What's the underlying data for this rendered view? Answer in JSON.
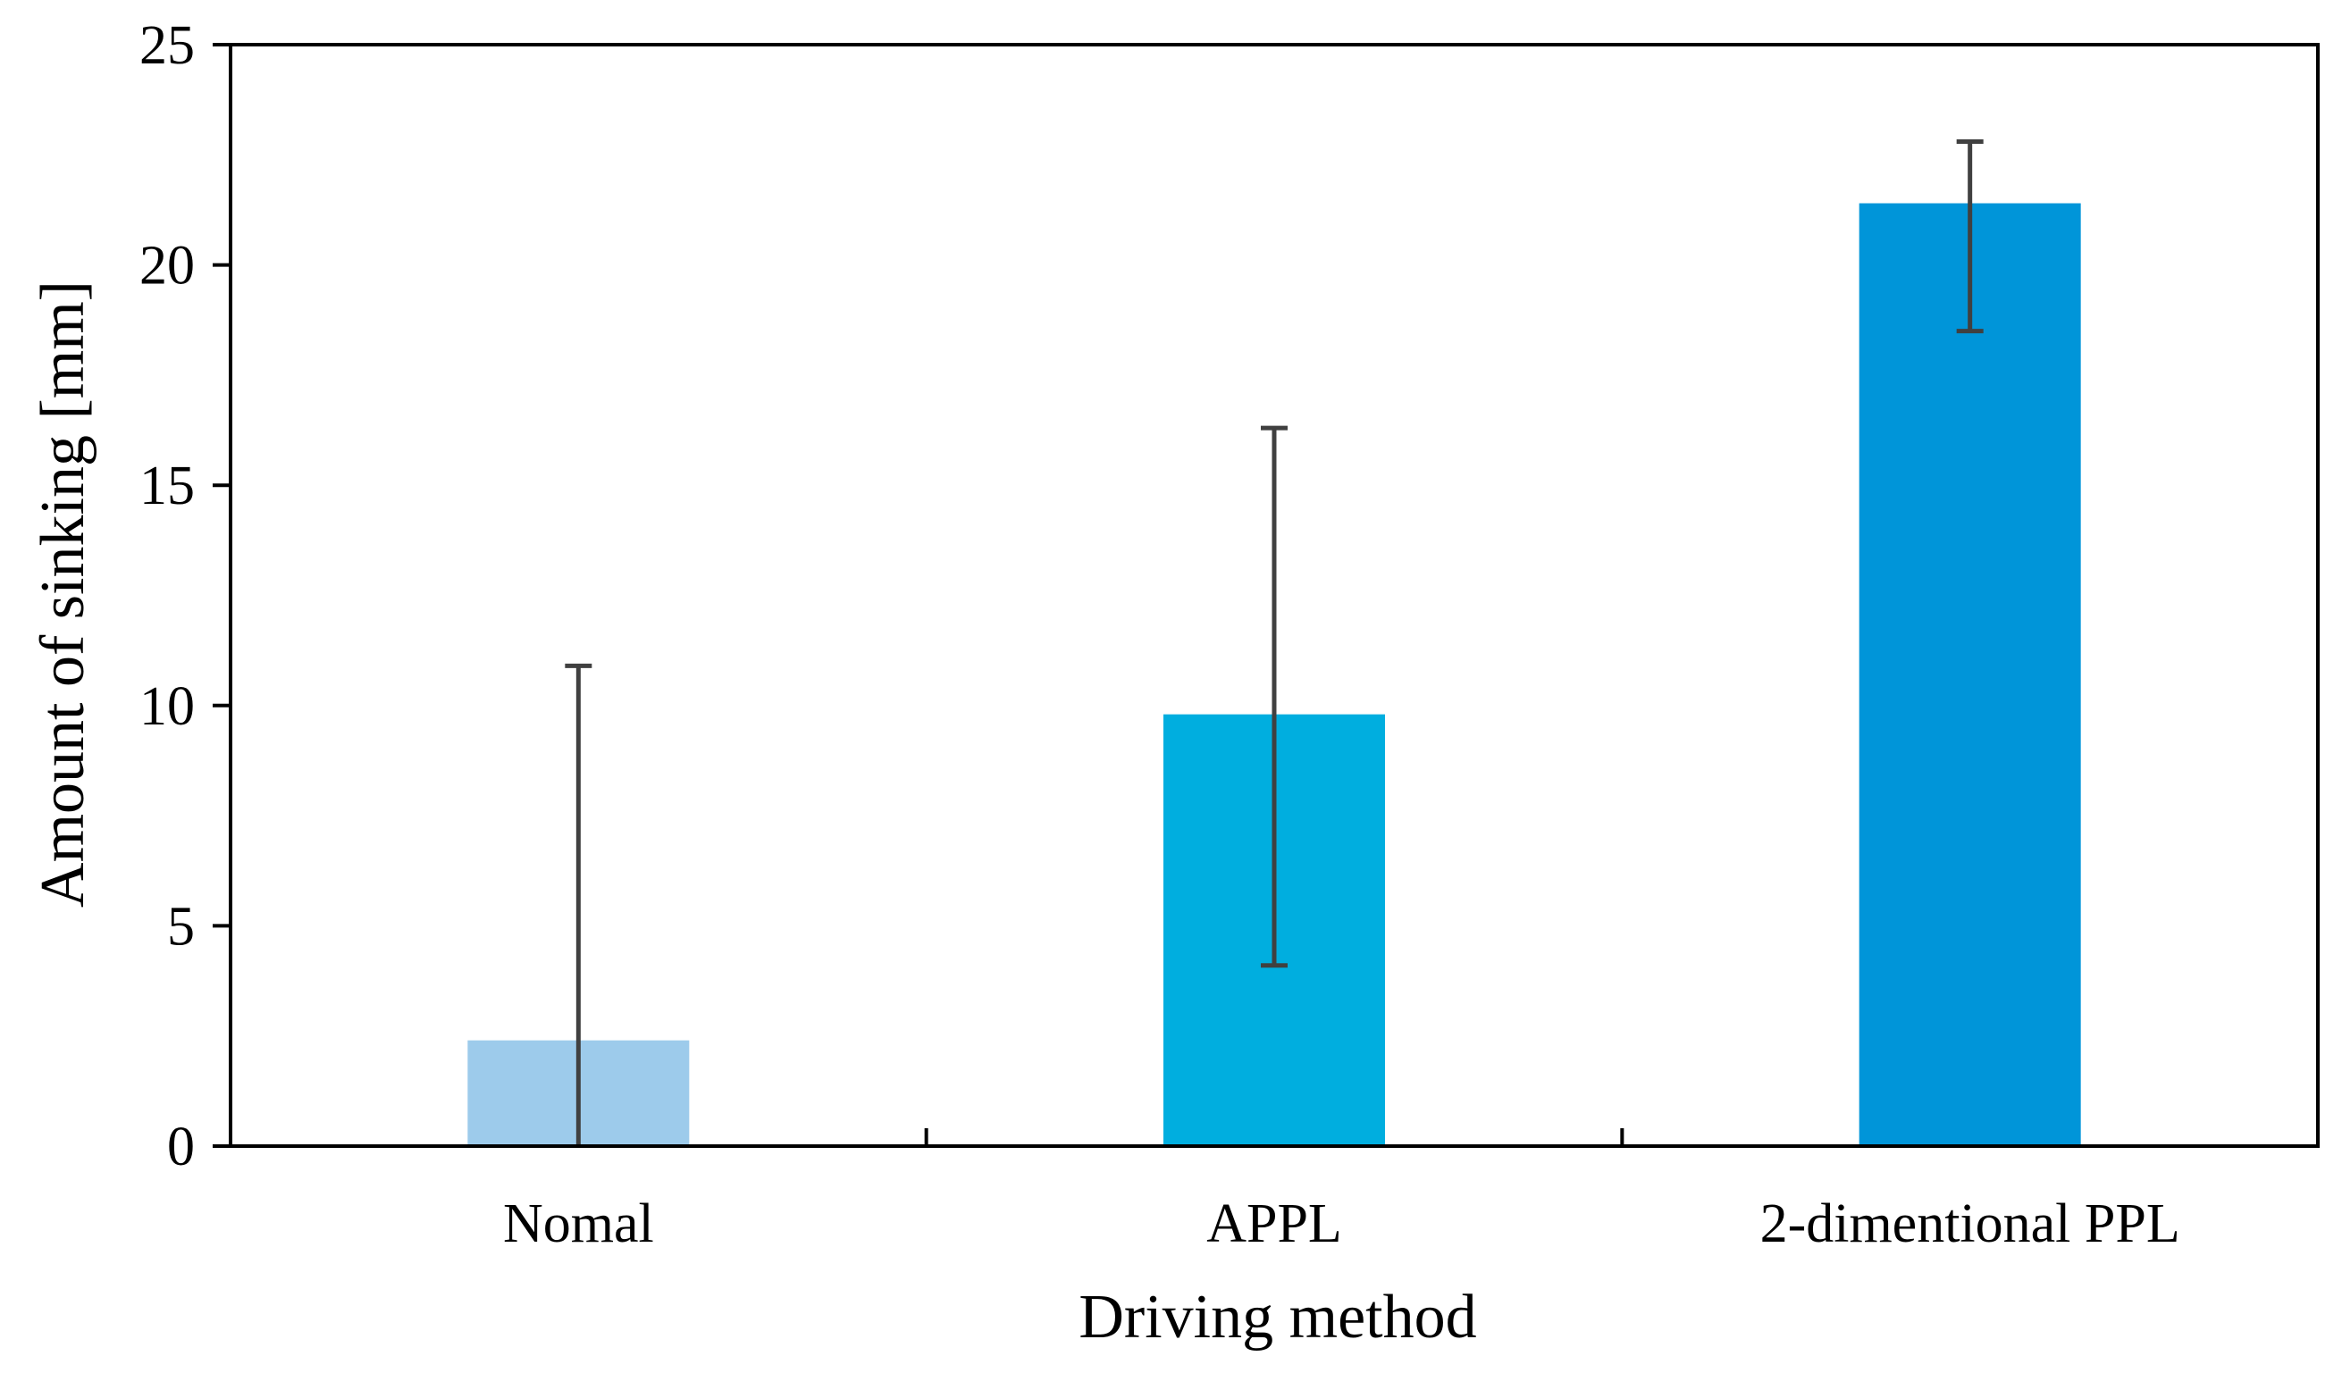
{
  "chart_data": {
    "type": "bar",
    "title": "",
    "xlabel": "Driving method",
    "ylabel": "Amount of sinking [mm]",
    "categories": [
      "Nomal",
      "APPL",
      "2-dimentional PPL"
    ],
    "values": [
      2.4,
      9.8,
      21.4
    ],
    "error_low": [
      0.0,
      4.1,
      18.5
    ],
    "error_high": [
      10.9,
      16.3,
      22.8
    ],
    "ylim": [
      0,
      25
    ],
    "yticks": [
      0,
      5,
      10,
      15,
      20,
      25
    ],
    "ytick_labels": [
      "0",
      "5",
      "10",
      "15",
      "20",
      "25"
    ],
    "grid": false,
    "legend": "none",
    "colors": {
      "bars": [
        "#9DCBEB",
        "#00AEDF",
        "#0095D9"
      ],
      "error_bar": "#404040",
      "axis": "#000000"
    }
  }
}
